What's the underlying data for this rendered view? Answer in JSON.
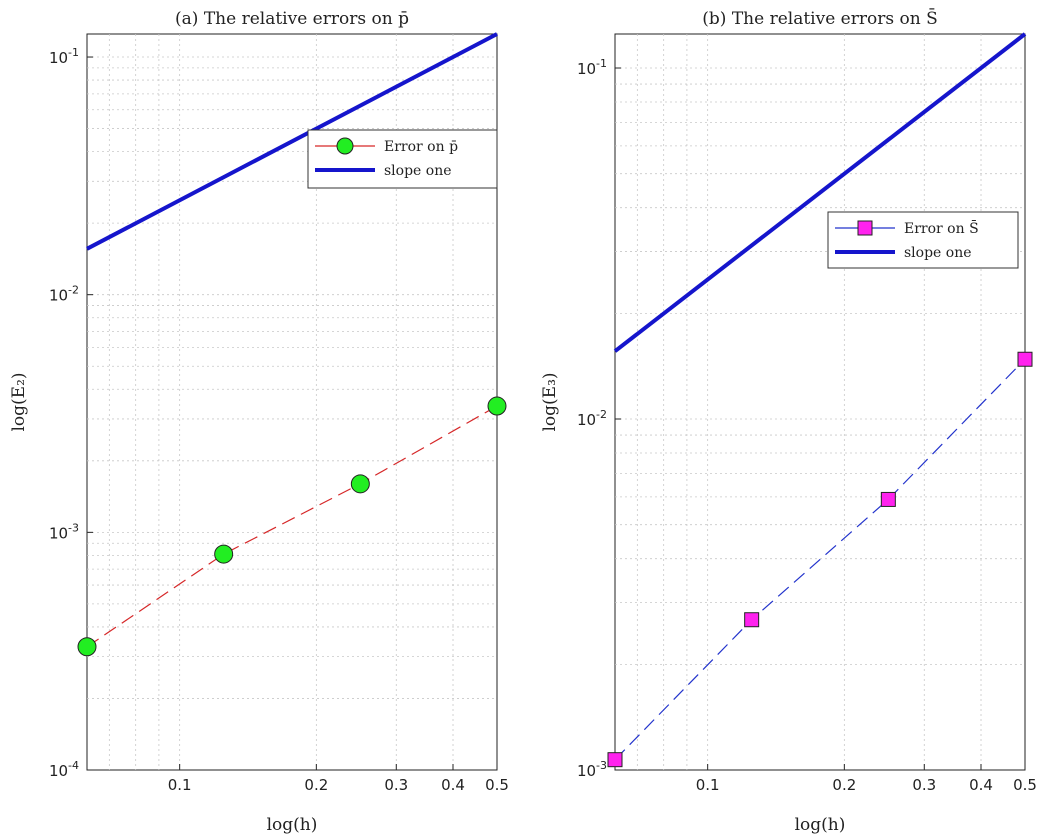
{
  "chart_data": [
    {
      "type": "line",
      "title": "(a) The relative errors on p̄",
      "xlabel": "log(h)",
      "ylabel": "log(E₂)",
      "xscale": "log",
      "yscale": "log",
      "xlim": [
        0.0625,
        0.5
      ],
      "ylim": [
        0.0001,
        0.125
      ],
      "x_ticks": [
        {
          "value": 0.1,
          "label": "0.1"
        },
        {
          "value": 0.2,
          "label": "0.2"
        },
        {
          "value": 0.3,
          "label": "0.3"
        },
        {
          "value": 0.4,
          "label": "0.4"
        },
        {
          "value": 0.5,
          "label": "0.5"
        }
      ],
      "y_ticks": [
        {
          "value": 0.0001,
          "base": "10",
          "exp": "-4"
        },
        {
          "value": 0.001,
          "base": "10",
          "exp": "-3"
        },
        {
          "value": 0.01,
          "base": "10",
          "exp": "-2"
        },
        {
          "value": 0.1,
          "base": "10",
          "exp": "-1"
        }
      ],
      "grid": true,
      "legend_position": "top-right",
      "series": [
        {
          "name": "Error on p̄",
          "color": "#d62728",
          "line_style": "dashed",
          "marker": "circle",
          "marker_fill": "#22ee22",
          "x": [
            0.0625,
            0.125,
            0.25,
            0.5
          ],
          "y": [
            0.00033,
            0.00081,
            0.0016,
            0.0034
          ]
        },
        {
          "name": "slope one",
          "color": "#1515cc",
          "line_style": "solid",
          "marker": "none",
          "x": [
            0.0625,
            0.5
          ],
          "y": [
            0.0156,
            0.125
          ]
        }
      ]
    },
    {
      "type": "line",
      "title": "(b) The relative errors on S̄",
      "xlabel": "log(h)",
      "ylabel": "log(E₃)",
      "xscale": "log",
      "yscale": "log",
      "xlim": [
        0.0625,
        0.5
      ],
      "ylim": [
        0.001,
        0.125
      ],
      "x_ticks": [
        {
          "value": 0.1,
          "label": "0.1"
        },
        {
          "value": 0.2,
          "label": "0.2"
        },
        {
          "value": 0.3,
          "label": "0.3"
        },
        {
          "value": 0.4,
          "label": "0.4"
        },
        {
          "value": 0.5,
          "label": "0.5"
        }
      ],
      "y_ticks": [
        {
          "value": 0.001,
          "base": "10",
          "exp": "-3"
        },
        {
          "value": 0.01,
          "base": "10",
          "exp": "-2"
        },
        {
          "value": 0.1,
          "base": "10",
          "exp": "-1"
        }
      ],
      "grid": true,
      "legend_position": "center-right",
      "series": [
        {
          "name": "Error on S̄",
          "color": "#2233cc",
          "line_style": "dashed",
          "marker": "square",
          "marker_fill": "#ff22ee",
          "x": [
            0.0625,
            0.125,
            0.25,
            0.5
          ],
          "y": [
            0.00107,
            0.00268,
            0.0059,
            0.0148
          ]
        },
        {
          "name": "slope one",
          "color": "#1515cc",
          "line_style": "solid",
          "marker": "none",
          "x": [
            0.0625,
            0.5
          ],
          "y": [
            0.0156,
            0.125
          ]
        }
      ]
    }
  ]
}
